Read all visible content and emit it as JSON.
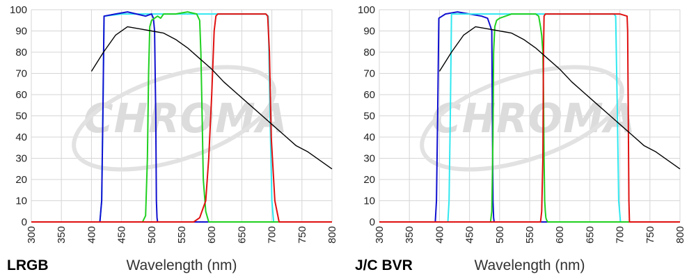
{
  "watermark": "CHROMA",
  "colors": {
    "grid": "#d6d6d6",
    "black": "#000000",
    "blue": "#1010d0",
    "cyan": "#30e8f0",
    "green": "#20d020",
    "red": "#e01010"
  },
  "chart_data": [
    {
      "type": "line",
      "filter_set": "LRGB",
      "xlabel": "Wavelength (nm)",
      "ylabel": "",
      "xlim": [
        300,
        800
      ],
      "ylim": [
        0,
        100
      ],
      "xticks": [
        300,
        350,
        400,
        450,
        500,
        550,
        600,
        650,
        700,
        750,
        800
      ],
      "yticks": [
        0,
        10,
        20,
        30,
        40,
        50,
        60,
        70,
        80,
        90,
        100
      ],
      "grid": true,
      "series": [
        {
          "color": "#30e8f0",
          "x": [
            300,
            414,
            417,
            419,
            421,
            450,
            500,
            550,
            600,
            650,
            690,
            694,
            697,
            700,
            703,
            800
          ],
          "y": [
            0,
            0,
            10,
            50,
            97,
            98,
            98,
            98,
            98,
            98,
            98,
            97,
            50,
            10,
            0,
            0
          ]
        },
        {
          "color": "#1010d0",
          "x": [
            300,
            414,
            417,
            419,
            421,
            440,
            460,
            475,
            490,
            500,
            503,
            505,
            507,
            508,
            509,
            510,
            512,
            800
          ],
          "y": [
            0,
            0,
            10,
            50,
            97,
            98,
            99,
            98,
            97,
            98,
            96,
            90,
            50,
            10,
            2,
            0,
            0,
            0
          ]
        },
        {
          "color": "#20d020",
          "x": [
            300,
            485,
            490,
            493,
            495,
            497,
            500,
            505,
            510,
            515,
            520,
            540,
            560,
            575,
            580,
            582,
            584,
            586,
            590,
            595,
            800
          ],
          "y": [
            0,
            0,
            3,
            30,
            70,
            92,
            95,
            96,
            97,
            96,
            98,
            98,
            99,
            98,
            95,
            80,
            50,
            20,
            5,
            0,
            0
          ]
        },
        {
          "color": "#e01010",
          "x": [
            300,
            570,
            580,
            590,
            595,
            600,
            604,
            607,
            610,
            650,
            690,
            693,
            696,
            699,
            705,
            712,
            800
          ],
          "y": [
            0,
            0,
            2,
            10,
            30,
            60,
            90,
            97,
            98,
            98,
            98,
            97,
            80,
            40,
            10,
            0,
            0
          ]
        },
        {
          "color": "#000000",
          "x": [
            400,
            420,
            440,
            460,
            480,
            500,
            520,
            540,
            560,
            580,
            600,
            620,
            640,
            660,
            680,
            700,
            720,
            740,
            760,
            780,
            800
          ],
          "y": [
            71,
            80,
            88,
            92,
            91,
            90,
            89,
            86,
            82,
            77,
            72,
            66,
            61,
            56,
            51,
            46,
            41,
            36,
            33,
            29,
            25
          ]
        }
      ]
    },
    {
      "type": "line",
      "filter_set": "J/C BVR",
      "xlabel": "Wavelength (nm)",
      "ylabel": "",
      "xlim": [
        300,
        800
      ],
      "ylim": [
        0,
        100
      ],
      "xticks": [
        300,
        350,
        400,
        450,
        500,
        550,
        600,
        650,
        700,
        750,
        800
      ],
      "yticks": [
        0,
        10,
        20,
        30,
        40,
        50,
        60,
        70,
        80,
        90,
        100
      ],
      "grid": true,
      "series": [
        {
          "color": "#1010d0",
          "x": [
            300,
            393,
            395,
            397,
            399,
            410,
            430,
            450,
            470,
            480,
            485,
            487,
            488,
            489,
            490,
            491,
            493,
            800
          ],
          "y": [
            0,
            0,
            10,
            50,
            96,
            98,
            99,
            98,
            97,
            96,
            92,
            90,
            50,
            10,
            2,
            0,
            0,
            0
          ]
        },
        {
          "color": "#30e8f0",
          "x": [
            300,
            414,
            416,
            418,
            420,
            450,
            500,
            550,
            600,
            650,
            690,
            693,
            696,
            698,
            701,
            800
          ],
          "y": [
            0,
            0,
            10,
            50,
            98,
            98,
            98,
            98,
            98,
            98,
            98,
            97,
            50,
            10,
            0,
            0
          ]
        },
        {
          "color": "#20d020",
          "x": [
            300,
            485,
            487,
            489,
            490,
            492,
            495,
            500,
            520,
            540,
            560,
            565,
            568,
            570,
            572,
            573,
            574,
            575,
            576,
            577,
            578,
            580,
            800
          ],
          "y": [
            0,
            0,
            5,
            40,
            80,
            92,
            95,
            96,
            98,
            98,
            98,
            97,
            92,
            88,
            80,
            60,
            30,
            10,
            5,
            2,
            1,
            0,
            0
          ]
        },
        {
          "color": "#e01010",
          "x": [
            300,
            568,
            570,
            572,
            573,
            574,
            576,
            590,
            650,
            700,
            712,
            713,
            714,
            715,
            716,
            800
          ],
          "y": [
            0,
            0,
            5,
            30,
            80,
            97,
            98,
            98,
            98,
            98,
            97,
            90,
            50,
            10,
            0,
            0
          ]
        },
        {
          "color": "#000000",
          "x": [
            400,
            420,
            440,
            460,
            480,
            500,
            520,
            540,
            560,
            580,
            600,
            620,
            640,
            660,
            680,
            700,
            720,
            740,
            760,
            780,
            800
          ],
          "y": [
            71,
            80,
            88,
            92,
            91,
            90,
            89,
            86,
            82,
            77,
            72,
            66,
            61,
            56,
            51,
            46,
            41,
            36,
            33,
            29,
            25
          ]
        }
      ]
    }
  ]
}
